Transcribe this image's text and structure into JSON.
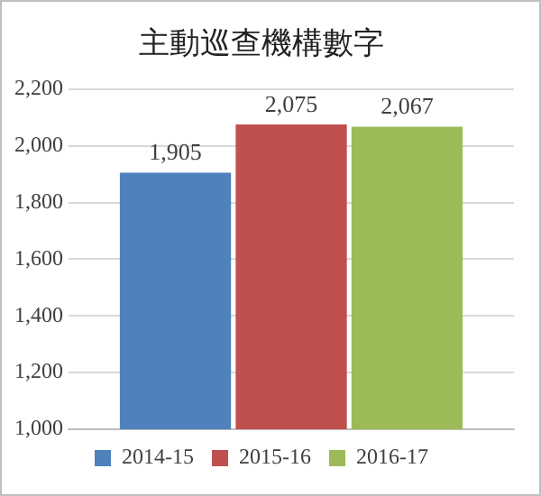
{
  "chart_data": {
    "type": "bar",
    "title": "主動巡查機構數字",
    "categories": [
      null
    ],
    "series": [
      {
        "name": "2014-15",
        "color": "#4f81bd",
        "values": [
          1905
        ],
        "value_labels": [
          "1,905"
        ]
      },
      {
        "name": "2015-16",
        "color": "#c0504d",
        "values": [
          2075
        ],
        "value_labels": [
          "2,075"
        ]
      },
      {
        "name": "2016-17",
        "color": "#9bbb59",
        "values": [
          2067
        ],
        "value_labels": [
          "2,067"
        ]
      }
    ],
    "ylim": [
      1000,
      2200
    ],
    "yticks": [
      {
        "value": 1000,
        "label": "1,000"
      },
      {
        "value": 1200,
        "label": "1,200"
      },
      {
        "value": 1400,
        "label": "1,400"
      },
      {
        "value": 1600,
        "label": "1,600"
      },
      {
        "value": 1800,
        "label": "1,800"
      },
      {
        "value": 2000,
        "label": "2,000"
      },
      {
        "value": 2200,
        "label": "2,200"
      }
    ],
    "grid": "y",
    "legend": "bottom"
  }
}
